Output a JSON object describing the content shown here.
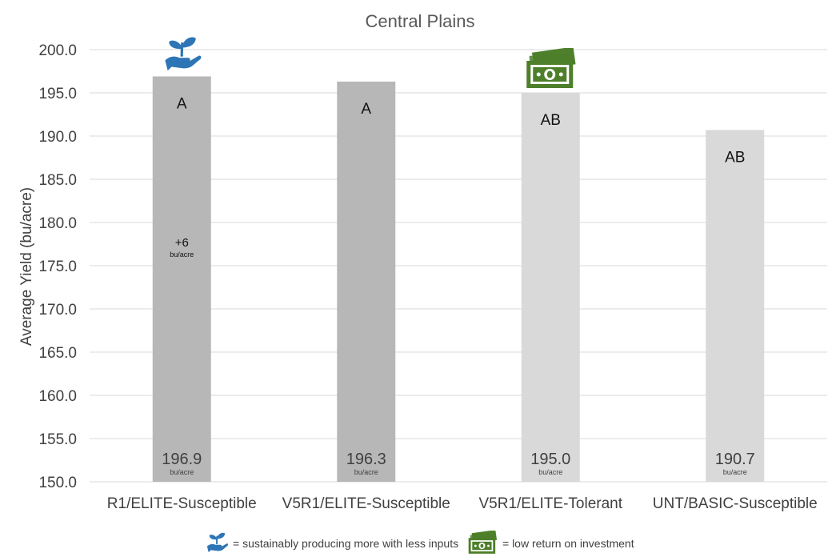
{
  "chart_data": {
    "type": "bar",
    "title": "Central Plains",
    "ylabel": "Average Yield (bu/acre)",
    "xlabel": "",
    "ylim": [
      150,
      200
    ],
    "yticks": [
      "150.0",
      "155.0",
      "160.0",
      "165.0",
      "170.0",
      "175.0",
      "180.0",
      "185.0",
      "190.0",
      "195.0",
      "200.0"
    ],
    "grid": true,
    "categories": [
      "R1/ELITE-Susceptible",
      "V5R1/ELITE-Susceptible",
      "V5R1/ELITE-Tolerant",
      "UNT/BASIC-Susceptible"
    ],
    "values": [
      196.9,
      196.3,
      195.0,
      190.7
    ],
    "value_labels": [
      "196.9",
      "196.3",
      "195.0",
      "190.7"
    ],
    "value_unit": "bu/acre",
    "group_letters": [
      "A",
      "A",
      "AB",
      "AB"
    ],
    "bar_colors": [
      "#b7b7b7",
      "#b7b7b7",
      "#d9d9d9",
      "#d9d9d9"
    ],
    "advantage": {
      "bar": 0,
      "value": "+6",
      "unit": "bu/acre"
    },
    "bar_icons": [
      {
        "bar": 0,
        "icon": "sustainable-plant-hand-icon",
        "color": "#2e75b6"
      },
      {
        "bar": 2,
        "icon": "money-bills-icon",
        "color": "#4e7f2b"
      }
    ]
  },
  "legend": {
    "items": [
      {
        "icon": "sustainable-plant-hand-icon",
        "text": "= sustainably producing more with less inputs"
      },
      {
        "icon": "money-bills-icon",
        "text": "= low return on investment"
      }
    ]
  }
}
